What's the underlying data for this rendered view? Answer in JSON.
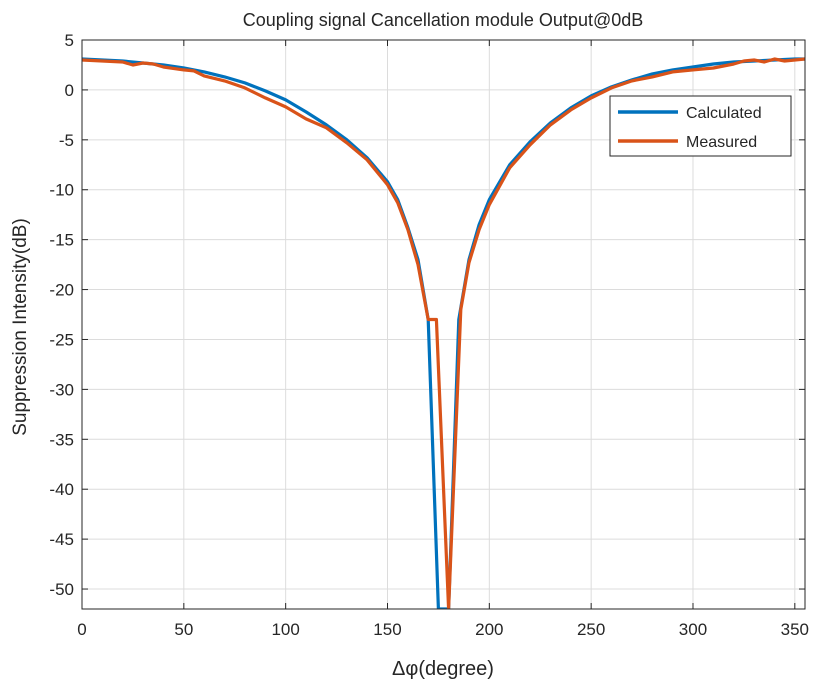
{
  "chart_data": {
    "type": "line",
    "title": "Coupling signal Cancellation module Output@0dB",
    "xlabel": "Δφ(degree)",
    "ylabel": "Suppression Intensity(dB)",
    "xlim": [
      0,
      355
    ],
    "ylim": [
      -52,
      5
    ],
    "xticks": [
      0,
      50,
      100,
      150,
      200,
      250,
      300,
      350
    ],
    "yticks": [
      5,
      0,
      -5,
      -10,
      -15,
      -20,
      -25,
      -30,
      -35,
      -40,
      -45,
      -50
    ],
    "grid": true,
    "legend_position": "top-right",
    "series": [
      {
        "name": "Calculated",
        "color": "#0072BD",
        "x": [
          0,
          10,
          20,
          30,
          40,
          50,
          60,
          70,
          80,
          90,
          100,
          110,
          120,
          130,
          140,
          150,
          155,
          160,
          165,
          170,
          175,
          180,
          185,
          190,
          195,
          200,
          210,
          220,
          230,
          240,
          250,
          260,
          270,
          280,
          290,
          300,
          310,
          320,
          330,
          340,
          350,
          355
        ],
        "y": [
          3.1,
          3.0,
          2.9,
          2.7,
          2.5,
          2.2,
          1.8,
          1.3,
          0.7,
          -0.1,
          -1.0,
          -2.2,
          -3.5,
          -5.0,
          -6.8,
          -9.2,
          -11.0,
          -13.8,
          -17.0,
          -23.0,
          -52.0,
          -52.0,
          -23.0,
          -17.0,
          -13.5,
          -11.0,
          -7.5,
          -5.2,
          -3.3,
          -1.8,
          -0.6,
          0.3,
          1.0,
          1.6,
          2.0,
          2.3,
          2.6,
          2.8,
          2.9,
          3.0,
          3.1,
          3.1
        ]
      },
      {
        "name": "Measured",
        "color": "#D95319",
        "x": [
          0,
          10,
          20,
          25,
          30,
          35,
          40,
          50,
          55,
          60,
          70,
          80,
          90,
          100,
          110,
          120,
          130,
          140,
          150,
          155,
          160,
          165,
          170,
          174,
          180,
          186,
          190,
          195,
          200,
          210,
          220,
          230,
          240,
          250,
          260,
          270,
          280,
          290,
          300,
          310,
          320,
          325,
          330,
          335,
          340,
          345,
          350,
          355
        ],
        "y": [
          3.0,
          2.9,
          2.8,
          2.5,
          2.7,
          2.6,
          2.3,
          2.0,
          1.9,
          1.4,
          0.9,
          0.2,
          -0.8,
          -1.7,
          -2.9,
          -3.8,
          -5.3,
          -7.0,
          -9.5,
          -11.3,
          -14.0,
          -17.5,
          -23.0,
          -23.0,
          -52.0,
          -22.0,
          -17.3,
          -14.0,
          -11.5,
          -7.8,
          -5.5,
          -3.5,
          -2.0,
          -0.8,
          0.2,
          0.9,
          1.3,
          1.8,
          2.0,
          2.2,
          2.6,
          2.9,
          3.0,
          2.8,
          3.1,
          2.9,
          3.0,
          3.1
        ]
      }
    ]
  }
}
